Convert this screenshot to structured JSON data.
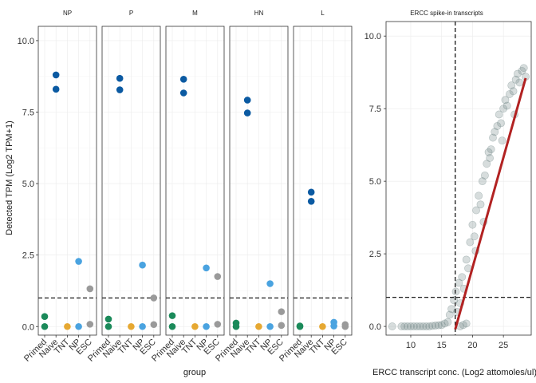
{
  "chart_data": [
    {
      "type": "scatter",
      "facets": [
        "NP",
        "P",
        "M",
        "HN",
        "L"
      ],
      "categories": [
        "Primed",
        "Naive",
        "TNT",
        "NP",
        "ESC"
      ],
      "xlabel": "group",
      "ylabel": "Detected TPM (Log2 TPM+1)",
      "ylim": [
        -0.3,
        10.5
      ],
      "yticks": [
        "0.0",
        "2.5",
        "5.0",
        "7.5",
        "10.0"
      ],
      "ytick_values": [
        0,
        2.5,
        5,
        7.5,
        10
      ],
      "threshold_y": 1,
      "grid": true,
      "colors": {
        "Primed": "#1b8a5a",
        "Naive": "#0b5aa2",
        "TNT": "#e6a832",
        "NP": "#4aa3e0",
        "ESC": "#9a9a9a"
      },
      "points": {
        "NP": {
          "Primed": [
            0.35,
            0.0
          ],
          "Naive": [
            8.8,
            8.3
          ],
          "TNT": [
            0.0
          ],
          "NP": [
            2.28,
            0.0
          ],
          "ESC": [
            1.32,
            0.08
          ]
        },
        "P": {
          "Primed": [
            0.26,
            0.0
          ],
          "Naive": [
            8.68,
            8.28
          ],
          "TNT": [
            0.0
          ],
          "NP": [
            2.15,
            0.0
          ],
          "ESC": [
            1.0,
            0.07
          ]
        },
        "M": {
          "Primed": [
            0.38,
            0.0
          ],
          "Naive": [
            8.65,
            8.17
          ],
          "TNT": [
            0.0
          ],
          "NP": [
            2.05,
            0.0
          ],
          "ESC": [
            1.75,
            0.08
          ]
        },
        "HN": {
          "Primed": [
            0.12,
            0.0
          ],
          "Naive": [
            7.92,
            7.47
          ],
          "TNT": [
            0.0
          ],
          "NP": [
            1.5,
            0.0
          ],
          "ESC": [
            0.52,
            0.04
          ]
        },
        "L": {
          "Primed": [
            0.02,
            0.0
          ],
          "Naive": [
            4.7,
            4.38
          ],
          "TNT": [
            0.0
          ],
          "NP": [
            0.15,
            0.02
          ],
          "ESC": [
            0.07,
            0.0
          ]
        }
      }
    },
    {
      "type": "scatter",
      "title": "ERCC spike-in transcripts",
      "xlabel": "ERCC transcript conc. (Log2 attomoles/ul)",
      "xlim": [
        6.0,
        29.5
      ],
      "ylim": [
        -0.3,
        10.5
      ],
      "xticks": [
        "10",
        "15",
        "20",
        "25"
      ],
      "xtick_values": [
        10,
        15,
        20,
        25
      ],
      "yticks": [
        "0.0",
        "2.5",
        "5.0",
        "7.5",
        "10.0"
      ],
      "ytick_values": [
        0,
        2.5,
        5,
        7.5,
        10
      ],
      "threshold_x": 17.2,
      "threshold_y": 1,
      "grid": true,
      "point_color": "#6f8585",
      "fit_color": "#b22222",
      "fit_line": [
        [
          17.2,
          -0.1
        ],
        [
          28.6,
          8.55
        ]
      ],
      "points": [
        [
          7.0,
          0.0
        ],
        [
          8.5,
          0.0
        ],
        [
          9.0,
          0.0
        ],
        [
          9.5,
          0.0
        ],
        [
          10.0,
          0.0
        ],
        [
          10.5,
          0.0
        ],
        [
          11.0,
          0.0
        ],
        [
          11.5,
          0.0
        ],
        [
          12.0,
          0.0
        ],
        [
          12.5,
          0.0
        ],
        [
          13.0,
          0.0
        ],
        [
          13.5,
          0.02
        ],
        [
          14.0,
          0.03
        ],
        [
          14.5,
          0.04
        ],
        [
          15.0,
          0.05
        ],
        [
          15.5,
          0.1
        ],
        [
          16.0,
          0.15
        ],
        [
          16.3,
          0.4
        ],
        [
          16.6,
          0.6
        ],
        [
          17.0,
          0.9
        ],
        [
          17.3,
          1.2
        ],
        [
          17.5,
          0.5
        ],
        [
          17.8,
          1.5
        ],
        [
          18.0,
          0.8
        ],
        [
          18.3,
          1.7
        ],
        [
          18.6,
          1.3
        ],
        [
          19.0,
          2.3
        ],
        [
          19.3,
          2.0
        ],
        [
          19.6,
          2.9
        ],
        [
          20.0,
          3.5
        ],
        [
          20.3,
          3.1
        ],
        [
          20.6,
          4.0
        ],
        [
          21.0,
          4.5
        ],
        [
          21.3,
          4.2
        ],
        [
          21.6,
          5.0
        ],
        [
          22.0,
          5.2
        ],
        [
          22.3,
          5.6
        ],
        [
          22.6,
          6.0
        ],
        [
          23.0,
          6.1
        ],
        [
          23.3,
          6.5
        ],
        [
          23.6,
          6.7
        ],
        [
          24.0,
          6.9
        ],
        [
          24.3,
          7.3
        ],
        [
          24.6,
          7.0
        ],
        [
          25.0,
          7.5
        ],
        [
          25.3,
          7.8
        ],
        [
          25.6,
          7.6
        ],
        [
          26.0,
          8.0
        ],
        [
          26.3,
          8.3
        ],
        [
          26.6,
          8.1
        ],
        [
          27.0,
          8.5
        ],
        [
          27.3,
          8.7
        ],
        [
          27.6,
          8.4
        ],
        [
          28.0,
          8.8
        ],
        [
          28.3,
          8.9
        ],
        [
          28.6,
          8.6
        ],
        [
          18.0,
          0.0
        ],
        [
          18.5,
          0.05
        ],
        [
          19.0,
          0.1
        ],
        [
          20.5,
          2.6
        ],
        [
          21.8,
          3.6
        ],
        [
          22.8,
          5.8
        ],
        [
          24.8,
          6.4
        ],
        [
          26.8,
          7.3
        ]
      ]
    }
  ]
}
